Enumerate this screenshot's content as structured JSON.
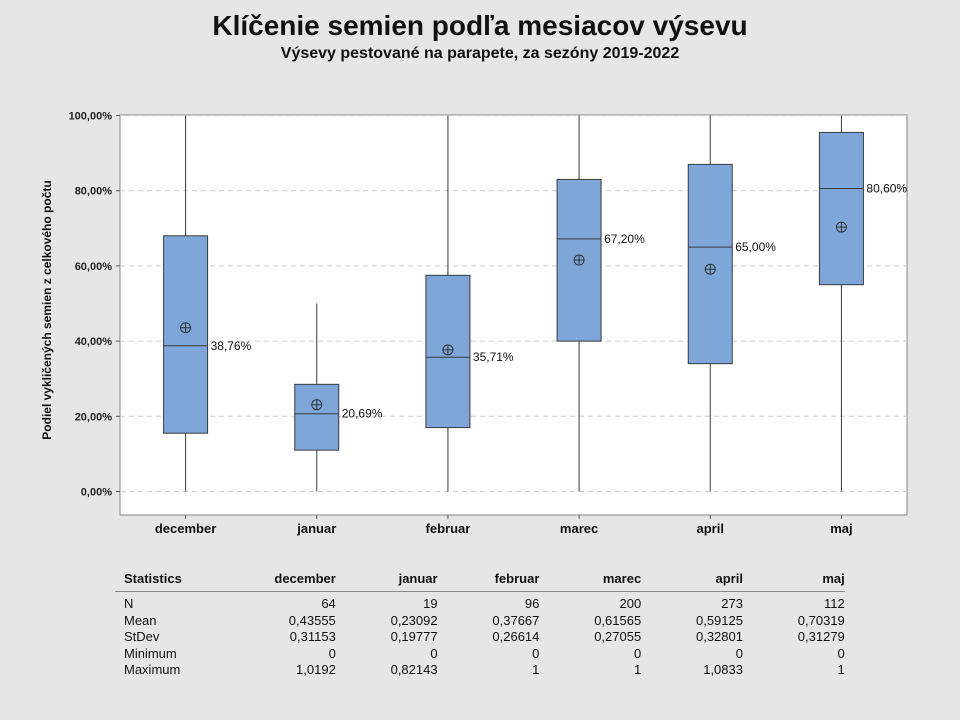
{
  "title": "Klíčenie semien podľa mesiacov výsevu",
  "subtitle": "Výsevy pestované na parapete, za sezóny 2019-2022",
  "chart_data": {
    "type": "boxplot",
    "ylabel": "Podiel vykličených semien z celkového počtu",
    "xlabel": "",
    "ylim": [
      -0.06,
      1.0
    ],
    "yticks": [
      "0,00%",
      "20,00%",
      "40,00%",
      "60,00%",
      "80,00%",
      "100,00%"
    ],
    "ytick_values": [
      0,
      0.2,
      0.4,
      0.6,
      0.8,
      1.0
    ],
    "grid": true,
    "categories": [
      "december",
      "januar",
      "februar",
      "marec",
      "april",
      "maj"
    ],
    "boxes": [
      {
        "category": "december",
        "whisker_low": 0,
        "q1": 0.155,
        "median": 0.3876,
        "q3": 0.68,
        "whisker_high": 1.0,
        "mean": 0.43555,
        "median_label": "38,76%"
      },
      {
        "category": "januar",
        "whisker_low": 0,
        "q1": 0.11,
        "median": 0.2069,
        "q3": 0.285,
        "whisker_high": 0.5,
        "mean": 0.23092,
        "median_label": "20,69%"
      },
      {
        "category": "februar",
        "whisker_low": 0,
        "q1": 0.17,
        "median": 0.3571,
        "q3": 0.575,
        "whisker_high": 1.0,
        "mean": 0.37667,
        "median_label": "35,71%"
      },
      {
        "category": "marec",
        "whisker_low": 0,
        "q1": 0.4,
        "median": 0.672,
        "q3": 0.83,
        "whisker_high": 1.0,
        "mean": 0.61565,
        "median_label": "67,20%"
      },
      {
        "category": "april",
        "whisker_low": 0,
        "q1": 0.34,
        "median": 0.65,
        "q3": 0.87,
        "whisker_high": 1.0,
        "mean": 0.59125,
        "median_label": "65,00%"
      },
      {
        "category": "maj",
        "whisker_low": 0,
        "q1": 0.55,
        "median": 0.806,
        "q3": 0.955,
        "whisker_high": 1.0,
        "mean": 0.70319,
        "median_label": "80,60%"
      }
    ]
  },
  "stats_table": {
    "headers": [
      "Statistics",
      "december",
      "januar",
      "februar",
      "marec",
      "april",
      "maj"
    ],
    "rows": [
      [
        "N",
        "64",
        "19",
        "96",
        "200",
        "273",
        "112"
      ],
      [
        "Mean",
        "0,43555",
        "0,23092",
        "0,37667",
        "0,61565",
        "0,59125",
        "0,70319"
      ],
      [
        "StDev",
        "0,31153",
        "0,19777",
        "0,26614",
        "0,27055",
        "0,32801",
        "0,31279"
      ],
      [
        "Minimum",
        "0",
        "0",
        "0",
        "0",
        "0",
        "0"
      ],
      [
        "Maximum",
        "1,0192",
        "0,82143",
        "1",
        "1",
        "1,0833",
        "1"
      ]
    ]
  },
  "colors": {
    "box_fill": "#7ea6d9",
    "box_stroke": "#3a3a3a",
    "background": "#e6e6e6",
    "plot_bg": "#ffffff",
    "grid": "#cccccc"
  }
}
